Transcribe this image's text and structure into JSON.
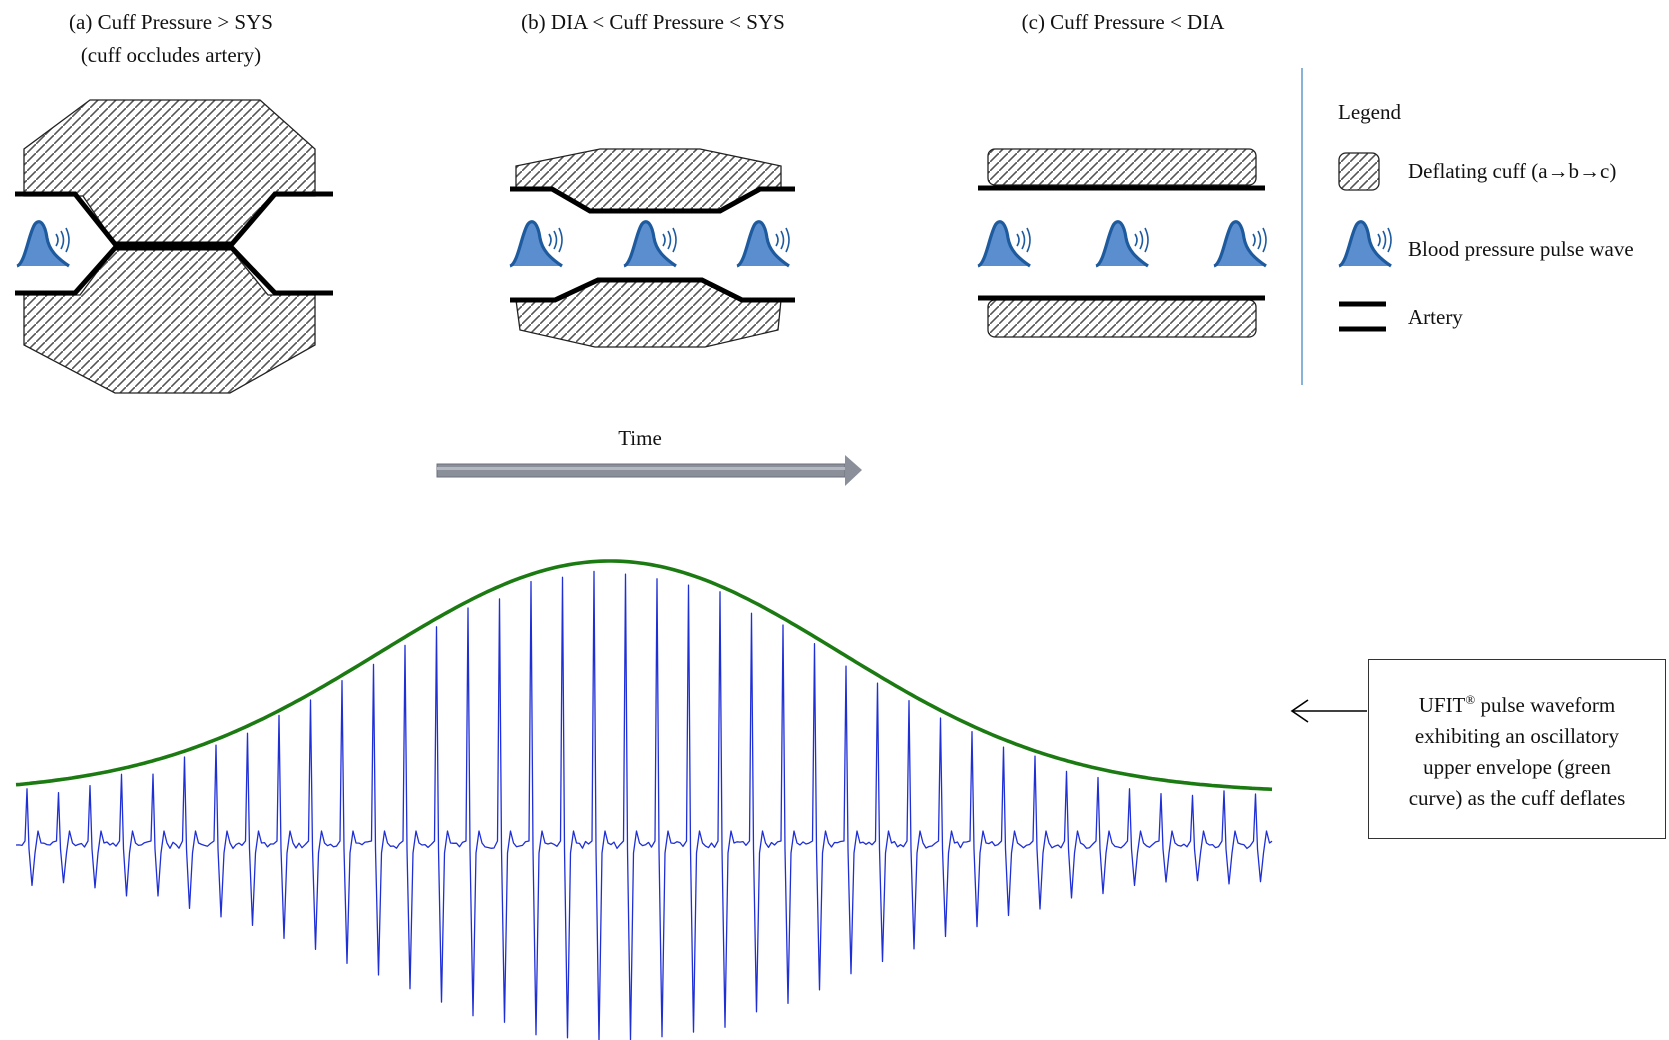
{
  "panels": {
    "a_title": "(a) Cuff Pressure > SYS",
    "a_subtitle": "(cuff occludes artery)",
    "b_title": "(b) DIA < Cuff Pressure < SYS",
    "c_title": "(c) Cuff Pressure < DIA"
  },
  "legend": {
    "title": "Legend",
    "cuff": "Deflating cuff (a→b→c)",
    "pulse": "Blood pressure pulse wave",
    "artery": "Artery"
  },
  "time_label": "Time",
  "note": {
    "brand": "UFIT",
    "mark": "®",
    "line1_rest": " pulse waveform",
    "line2": "exhibiting an oscillatory",
    "line3": "upper envelope (green",
    "line4": "curve) as the cuff deflates"
  },
  "colors": {
    "waveform": "#1f2fd6",
    "envelope": "#1c7a12",
    "pulse_fill": "#5b8ecf",
    "pulse_stroke": "#1e5a9e",
    "arrow": "#8a8f9a",
    "divider": "#6a9fcf"
  }
}
